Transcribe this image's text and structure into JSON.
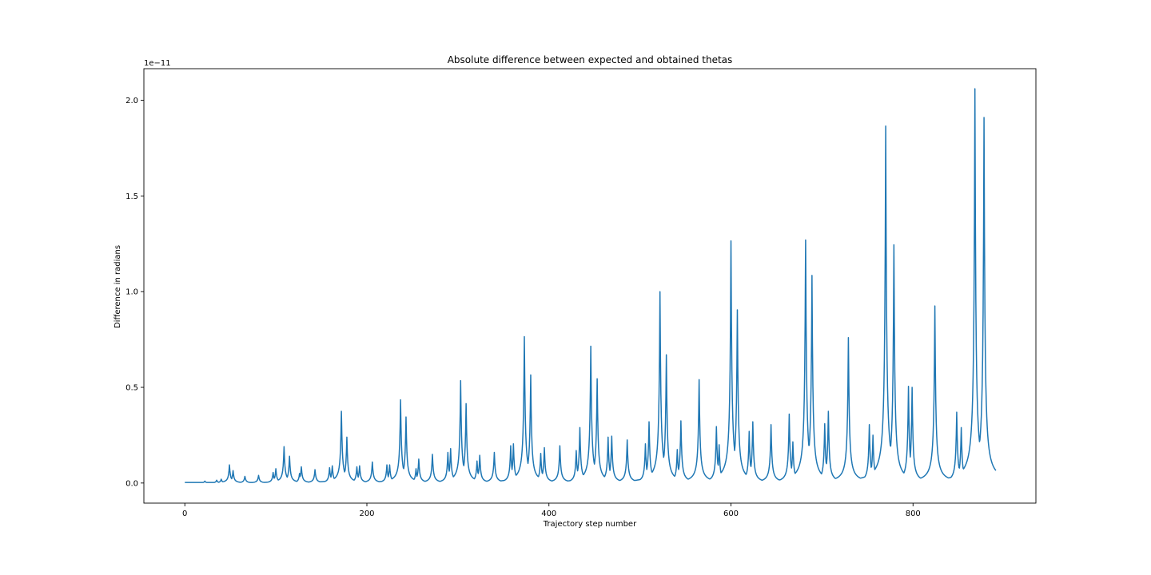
{
  "chart_data": {
    "type": "line",
    "title": "Absolute difference between expected and obtained thetas",
    "xlabel": "Trajectory step number",
    "ylabel": "Difference in radians",
    "offset_label": "1e−11",
    "xlim": [
      -45,
      935
    ],
    "ylim": [
      -0.105,
      2.165
    ],
    "xticks": [
      0,
      200,
      400,
      600,
      800
    ],
    "xtick_labels": [
      "0",
      "200",
      "400",
      "600",
      "800"
    ],
    "yticks": [
      0.0,
      0.5,
      1.0,
      1.5,
      2.0
    ],
    "ytick_labels": [
      "0.0",
      "0.5",
      "1.0",
      "1.5",
      "2.0"
    ],
    "grid": false,
    "line_color": "#1f77b4",
    "x_end": 891,
    "baseline": 0.003,
    "series": [
      {
        "peaks": [
          [
            22,
            0.01
          ],
          [
            35,
            0.015
          ],
          [
            40,
            0.02
          ],
          [
            49,
            0.095
          ],
          [
            53,
            0.065
          ],
          [
            66,
            0.035
          ],
          [
            81,
            0.04
          ],
          [
            97,
            0.055
          ],
          [
            100,
            0.075
          ],
          [
            109,
            0.19
          ],
          [
            115,
            0.14
          ],
          [
            126,
            0.05
          ],
          [
            128,
            0.085
          ],
          [
            143,
            0.07
          ],
          [
            159,
            0.08
          ],
          [
            162,
            0.09
          ],
          [
            172,
            0.375
          ],
          [
            178,
            0.24
          ],
          [
            189,
            0.085
          ],
          [
            192,
            0.09
          ],
          [
            206,
            0.11
          ],
          [
            222,
            0.095
          ],
          [
            225,
            0.095
          ],
          [
            237,
            0.435
          ],
          [
            243,
            0.345
          ],
          [
            254,
            0.075
          ],
          [
            257,
            0.125
          ],
          [
            272,
            0.15
          ],
          [
            289,
            0.16
          ],
          [
            292,
            0.18
          ],
          [
            303,
            0.535
          ],
          [
            309,
            0.415
          ],
          [
            321,
            0.115
          ],
          [
            324,
            0.145
          ],
          [
            340,
            0.16
          ],
          [
            358,
            0.195
          ],
          [
            361,
            0.205
          ],
          [
            373,
            0.765
          ],
          [
            380,
            0.565
          ],
          [
            391,
            0.155
          ],
          [
            395,
            0.185
          ],
          [
            412,
            0.195
          ],
          [
            430,
            0.17
          ],
          [
            434,
            0.29
          ],
          [
            446,
            0.715
          ],
          [
            453,
            0.545
          ],
          [
            465,
            0.24
          ],
          [
            469,
            0.245
          ],
          [
            486,
            0.225
          ],
          [
            506,
            0.205
          ],
          [
            510,
            0.32
          ],
          [
            522,
            1.0
          ],
          [
            529,
            0.67
          ],
          [
            541,
            0.175
          ],
          [
            545,
            0.325
          ],
          [
            565,
            0.54
          ],
          [
            584,
            0.295
          ],
          [
            587,
            0.2
          ],
          [
            600,
            1.265
          ],
          [
            607,
            0.905
          ],
          [
            620,
            0.27
          ],
          [
            624,
            0.32
          ],
          [
            644,
            0.305
          ],
          [
            664,
            0.36
          ],
          [
            668,
            0.215
          ],
          [
            682,
            1.27
          ],
          [
            689,
            1.085
          ],
          [
            703,
            0.31
          ],
          [
            707,
            0.375
          ],
          [
            729,
            0.76
          ],
          [
            752,
            0.305
          ],
          [
            756,
            0.25
          ],
          [
            770,
            1.865
          ],
          [
            779,
            1.245
          ],
          [
            795,
            0.505
          ],
          [
            799,
            0.5
          ],
          [
            824,
            0.925
          ],
          [
            848,
            0.37
          ],
          [
            853,
            0.29
          ],
          [
            868,
            2.06
          ],
          [
            878,
            1.91
          ]
        ]
      }
    ]
  }
}
